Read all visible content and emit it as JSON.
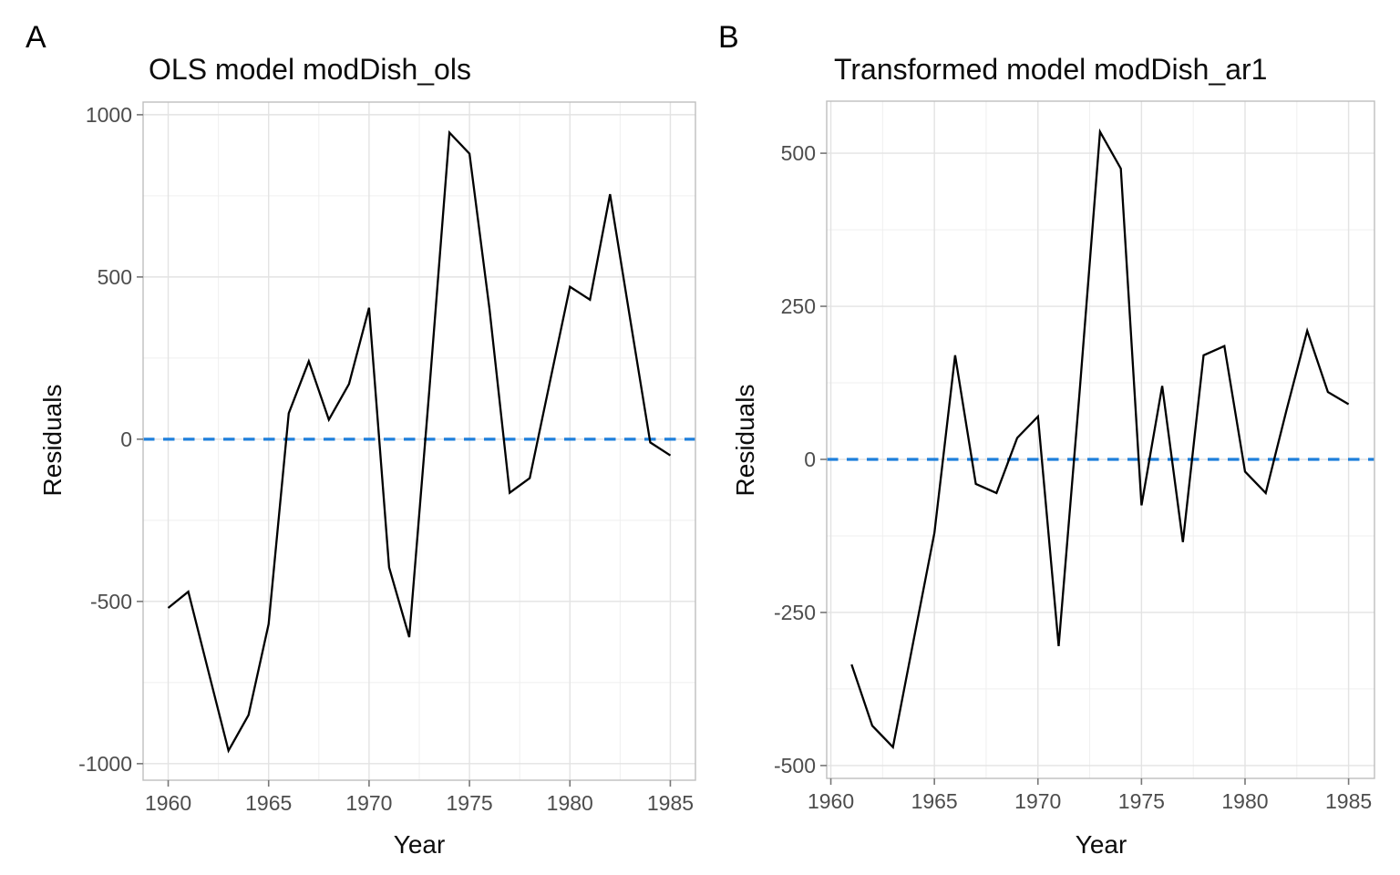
{
  "panels": [
    {
      "tag": "A",
      "title": "OLS model modDish_ols",
      "xlabel": "Year",
      "ylabel": "Residuals"
    },
    {
      "tag": "B",
      "title": "Transformed model modDish_ar1",
      "xlabel": "Year",
      "ylabel": "Residuals"
    }
  ],
  "chart_data": [
    {
      "type": "line",
      "title": "OLS model modDish_ols",
      "xlabel": "Year",
      "ylabel": "Residuals",
      "x": [
        1960,
        1961,
        1962,
        1963,
        1964,
        1965,
        1966,
        1967,
        1968,
        1969,
        1970,
        1971,
        1972,
        1973,
        1974,
        1975,
        1976,
        1977,
        1978,
        1979,
        1980,
        1981,
        1982,
        1983,
        1984,
        1985
      ],
      "values": [
        -520,
        -470,
        -715,
        -960,
        -850,
        -570,
        80,
        240,
        60,
        170,
        405,
        -395,
        -610,
        150,
        945,
        880,
        400,
        -165,
        -120,
        175,
        470,
        430,
        755,
        370,
        -10,
        -50
      ],
      "x_ticks": [
        1960,
        1965,
        1970,
        1975,
        1980,
        1985
      ],
      "y_ticks": [
        -1000,
        -500,
        0,
        500,
        1000
      ],
      "xlim": [
        1958.75,
        1986.25
      ],
      "ylim": [
        -1051,
        1039
      ],
      "grid": "major+minor",
      "legend": "none",
      "zero_line": {
        "y": 0,
        "style": "dashed",
        "color": "#1E7FDB"
      },
      "line_color": "#000000"
    },
    {
      "type": "line",
      "title": "Transformed model modDish_ar1",
      "xlabel": "Year",
      "ylabel": "Residuals",
      "x": [
        1961,
        1962,
        1963,
        1964,
        1965,
        1966,
        1967,
        1968,
        1969,
        1970,
        1971,
        1972,
        1973,
        1974,
        1975,
        1976,
        1977,
        1978,
        1979,
        1980,
        1981,
        1982,
        1983,
        1984,
        1985
      ],
      "values": [
        -335,
        -435,
        -470,
        -295,
        -120,
        170,
        -40,
        -55,
        35,
        70,
        -305,
        105,
        535,
        475,
        -75,
        120,
        -135,
        170,
        185,
        -20,
        -55,
        80,
        210,
        110,
        90
      ],
      "x_ticks": [
        1960,
        1965,
        1970,
        1975,
        1980,
        1985
      ],
      "y_ticks": [
        -500,
        -250,
        0,
        250,
        500
      ],
      "xlim": [
        1959.8,
        1986.25
      ],
      "ylim": [
        -521,
        585
      ],
      "grid": "major+minor",
      "legend": "none",
      "zero_line": {
        "y": 0,
        "style": "dashed",
        "color": "#1E7FDB"
      },
      "line_color": "#000000"
    }
  ],
  "colors": {
    "background": "#FFFFFF",
    "panel_border": "#BEBEBE",
    "grid_major": "#E3E3E3",
    "grid_minor": "#EFEFEF",
    "tick_mark": "#777777",
    "tick_label": "#4D4D4D",
    "text": "#0D0D0D",
    "zero_line_blue": "#1E7FDB",
    "series_line": "#000000"
  }
}
